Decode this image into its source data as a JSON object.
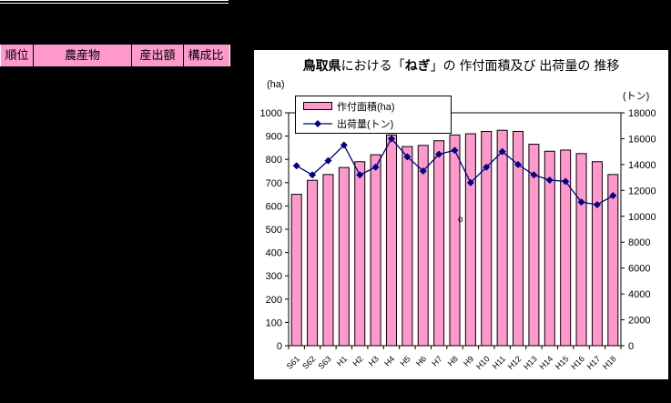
{
  "table": {
    "headers": [
      "順位",
      "農産物",
      "産出額",
      "構成比"
    ]
  },
  "chart": {
    "title_parts": [
      "鳥取県",
      "における「",
      "ねぎ",
      "」の 作付面積及び 出荷量の 推移"
    ],
    "left_axis_unit": "(ha)",
    "right_axis_unit": "(トン)",
    "legend": [
      "作付面積(ha)",
      "出荷量(トン)"
    ],
    "stray_text": "o"
  },
  "colors": {
    "background": "#000000",
    "table_header_bg": "#FF99CC",
    "bar_fill": "#FF99CC",
    "bar_border": "#000000",
    "line": "#000080",
    "chart_bg": "#FFFFFF"
  },
  "chart_data": {
    "type": "bar",
    "title": "鳥取県における「ねぎ」の 作付面積及び 出荷量の 推移",
    "categories": [
      "S61",
      "S62",
      "S63",
      "H1",
      "H2",
      "H3",
      "H4",
      "H5",
      "H6",
      "H7",
      "H8",
      "H9",
      "H10",
      "H11",
      "H12",
      "H13",
      "H14",
      "H15",
      "H16",
      "H17",
      "H18"
    ],
    "series": [
      {
        "name": "作付面積(ha)",
        "type": "bar",
        "axis": "left",
        "color": "#FF99CC",
        "values": [
          650,
          710,
          735,
          765,
          790,
          820,
          905,
          855,
          860,
          880,
          905,
          910,
          920,
          925,
          920,
          865,
          835,
          840,
          825,
          790,
          735
        ]
      },
      {
        "name": "出荷量(トン)",
        "type": "line",
        "axis": "right",
        "color": "#000080",
        "values": [
          13900,
          13200,
          14300,
          15500,
          13200,
          13800,
          16000,
          14600,
          13500,
          14800,
          15100,
          12600,
          13800,
          15000,
          14000,
          13200,
          12800,
          12700,
          11100,
          10900,
          11600
        ]
      }
    ],
    "left_axis": {
      "label": "(ha)",
      "min": 0,
      "max": 1000,
      "step": 100
    },
    "right_axis": {
      "label": "(トン)",
      "min": 0,
      "max": 18000,
      "step": 2000
    },
    "legend_position": "top-left",
    "grid": false,
    "annotations": [
      {
        "text": "o",
        "near_category": "H9"
      }
    ]
  }
}
